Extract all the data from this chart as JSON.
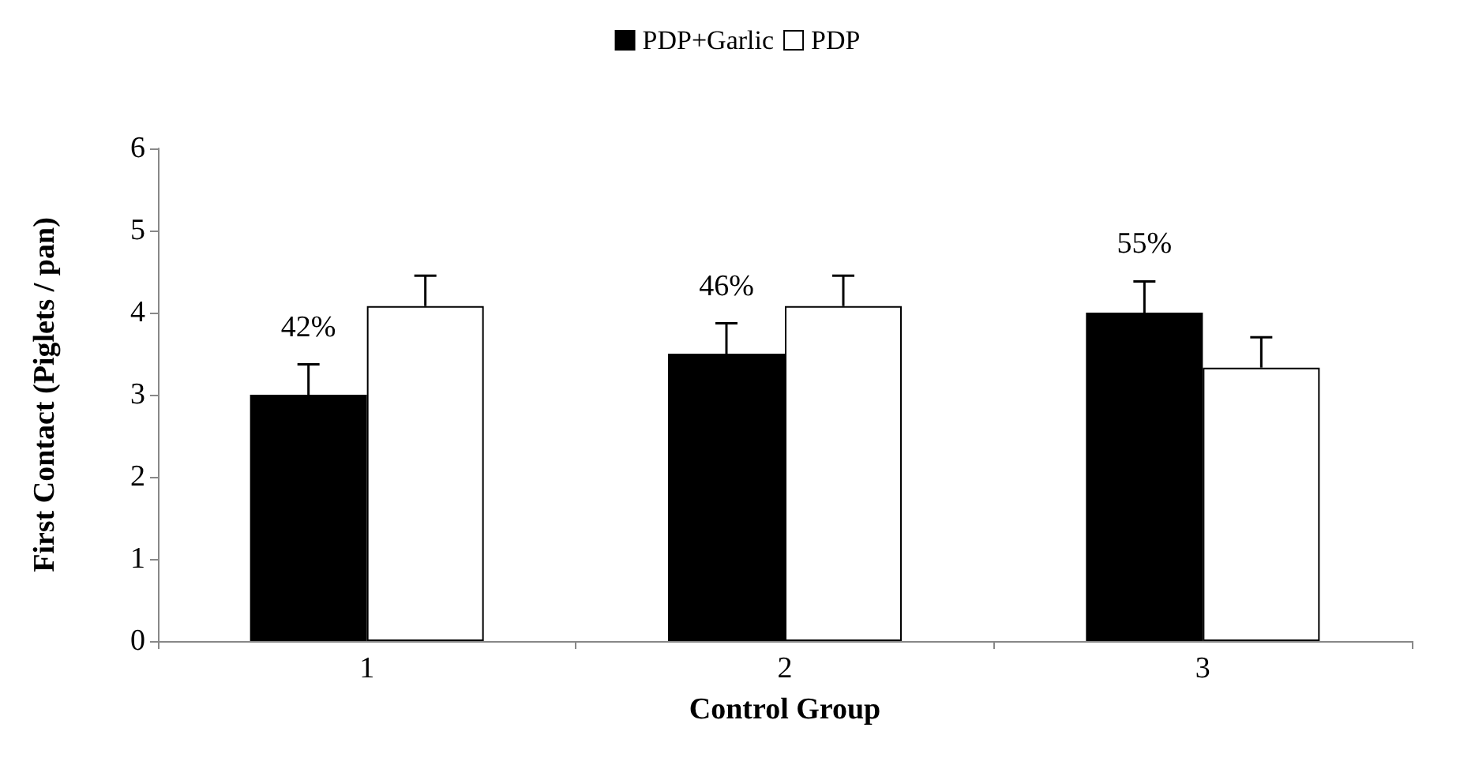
{
  "chart_data": {
    "type": "bar",
    "xlabel": "Control Group",
    "ylabel": "First Contact (Piglets / pan)",
    "categories": [
      "1",
      "2",
      "3"
    ],
    "series": [
      {
        "name": "PDP+Garlic",
        "color": "#000000",
        "values": [
          3.0,
          3.5,
          4.0
        ],
        "errors": [
          [
            3.0,
            3.37
          ],
          [
            3.5,
            3.87
          ],
          [
            4.0,
            4.38
          ]
        ]
      },
      {
        "name": "PDP",
        "color": "#ffffff",
        "values": [
          4.08,
          4.08,
          3.33
        ],
        "errors": [
          [
            4.08,
            4.45
          ],
          [
            4.08,
            4.45
          ],
          [
            3.33,
            3.7
          ]
        ]
      }
    ],
    "annotations": [
      "42%",
      "46%",
      "55%"
    ],
    "ylim": [
      0,
      6
    ],
    "yticks": [
      0,
      1,
      2,
      3,
      4,
      5,
      6
    ],
    "grid": false,
    "legend": "top"
  }
}
